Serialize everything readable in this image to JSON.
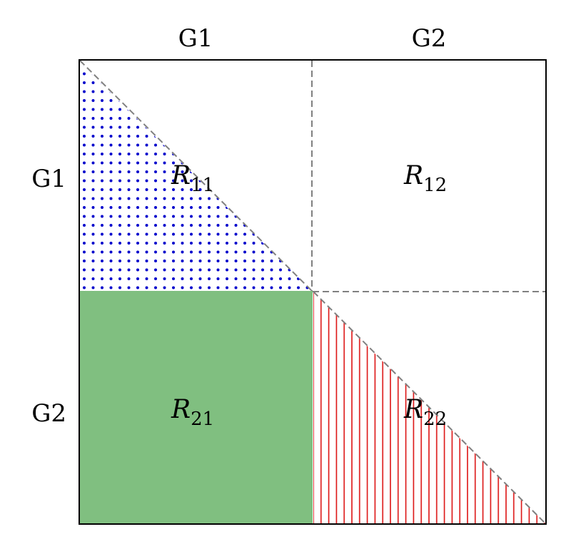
{
  "column_labels": [
    "G1",
    "G2"
  ],
  "row_labels": [
    "G1",
    "G2"
  ],
  "regions": {
    "r11": {
      "letter": "R",
      "sub": "11"
    },
    "r12": {
      "letter": "R",
      "sub": "12"
    },
    "r21": {
      "letter": "R",
      "sub": "21"
    },
    "r22": {
      "letter": "R",
      "sub": "22"
    }
  },
  "colors": {
    "dots": "#0000cc",
    "fill_r21": "#80bf80",
    "hatch_r22": "#dd1111",
    "dashed": "#808080",
    "frame": "#000000"
  }
}
